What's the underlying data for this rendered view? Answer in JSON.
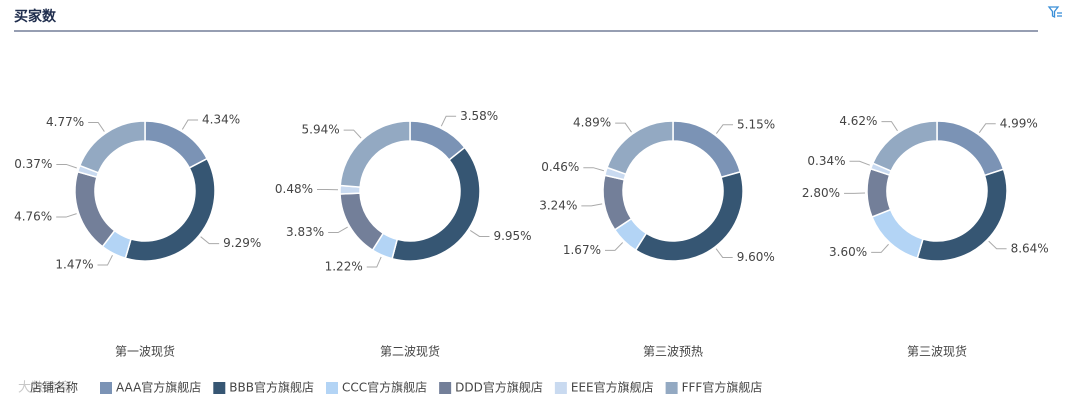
{
  "header": {
    "title": "买家数"
  },
  "chart_data": [
    {
      "type": "donut",
      "title": "第一波现货",
      "categories": [
        "AAA官方旗舰店",
        "BBB官方旗舰店",
        "CCC官方旗舰店",
        "DDD官方旗舰店",
        "EEE官方旗舰店",
        "FFF官方旗舰店"
      ],
      "colors": [
        "#7b93b5",
        "#365673",
        "#b3d4f5",
        "#737f99",
        "#c9daf0",
        "#93a9c2"
      ],
      "values": [
        4.34,
        9.29,
        1.47,
        4.76,
        0.37,
        4.77
      ],
      "value_labels": [
        "4.34%",
        "9.29%",
        "1.47%",
        "4.76%",
        "0.37%",
        "4.77%"
      ]
    },
    {
      "type": "donut",
      "title": "第二波现货",
      "categories": [
        "AAA官方旗舰店",
        "BBB官方旗舰店",
        "CCC官方旗舰店",
        "DDD官方旗舰店",
        "EEE官方旗舰店",
        "FFF官方旗舰店"
      ],
      "colors": [
        "#7b93b5",
        "#365673",
        "#b3d4f5",
        "#737f99",
        "#c9daf0",
        "#93a9c2"
      ],
      "values": [
        3.58,
        9.95,
        1.22,
        3.83,
        0.48,
        5.94
      ],
      "value_labels": [
        "3.58%",
        "9.95%",
        "1.22%",
        "3.83%",
        "0.48%",
        "5.94%"
      ]
    },
    {
      "type": "donut",
      "title": "第三波预热",
      "categories": [
        "AAA官方旗舰店",
        "BBB官方旗舰店",
        "CCC官方旗舰店",
        "DDD官方旗舰店",
        "EEE官方旗舰店",
        "FFF官方旗舰店"
      ],
      "colors": [
        "#7b93b5",
        "#365673",
        "#b3d4f5",
        "#737f99",
        "#c9daf0",
        "#93a9c2"
      ],
      "values": [
        5.15,
        9.6,
        1.67,
        3.24,
        0.46,
        4.89
      ],
      "value_labels": [
        "5.15%",
        "9.60%",
        "1.67%",
        "3.24%",
        "0.46%",
        "4.89%"
      ]
    },
    {
      "type": "donut",
      "title": "第三波现货",
      "categories": [
        "AAA官方旗舰店",
        "BBB官方旗舰店",
        "CCC官方旗舰店",
        "DDD官方旗舰店",
        "EEE官方旗舰店",
        "FFF官方旗舰店"
      ],
      "colors": [
        "#7b93b5",
        "#365673",
        "#b3d4f5",
        "#737f99",
        "#c9daf0",
        "#93a9c2"
      ],
      "values": [
        4.99,
        8.64,
        3.6,
        2.8,
        0.34,
        4.62
      ],
      "value_labels": [
        "4.99%",
        "8.64%",
        "3.60%",
        "2.80%",
        "0.34%",
        "4.62%"
      ]
    }
  ],
  "legend": {
    "title": "店铺名称"
  },
  "watermark": "大数跨境"
}
